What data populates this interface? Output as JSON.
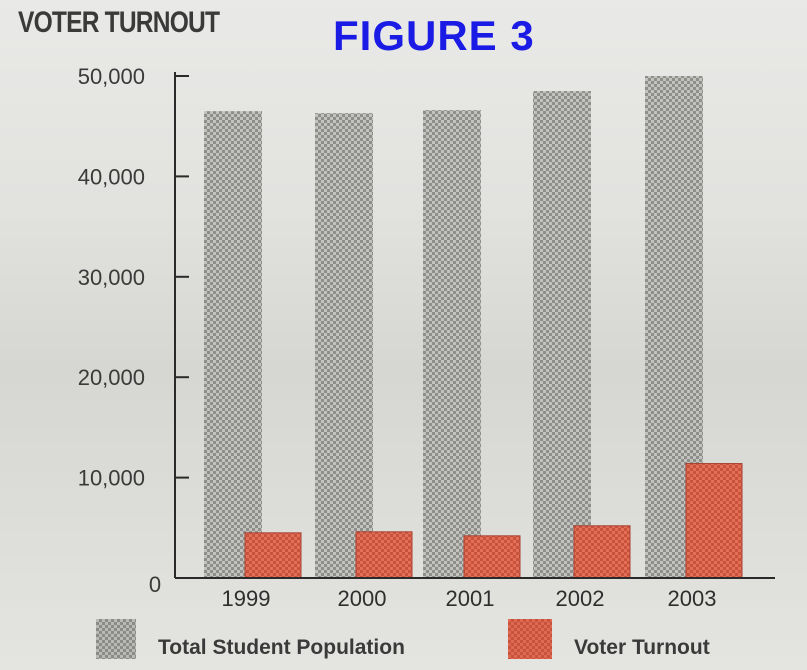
{
  "header": {
    "title": "VOTER TURNOUT",
    "figure_label": "FIGURE 3"
  },
  "chart_data": {
    "type": "bar",
    "title": "VOTER TURNOUT",
    "xlabel": "",
    "ylabel": "",
    "categories": [
      "1999",
      "2000",
      "2001",
      "2002",
      "2003"
    ],
    "series": [
      {
        "name": "Total Student Population",
        "values": [
          46500,
          46300,
          46600,
          48500,
          50000
        ],
        "color": "#b5b5b2"
      },
      {
        "name": "Voter Turnout",
        "values": [
          4500,
          4600,
          4200,
          5200,
          11400
        ],
        "color": "#df6a52"
      }
    ],
    "ylim": [
      0,
      50000
    ],
    "yticks": [
      0,
      10000,
      20000,
      30000,
      40000,
      50000
    ],
    "ytick_labels": [
      "0",
      "10,000",
      "20,000",
      "30,000",
      "40,000",
      "50,000"
    ],
    "grid": false,
    "legend_position": "bottom"
  },
  "legend": {
    "items": [
      {
        "label": "Total Student Population"
      },
      {
        "label": "Voter Turnout"
      }
    ]
  }
}
